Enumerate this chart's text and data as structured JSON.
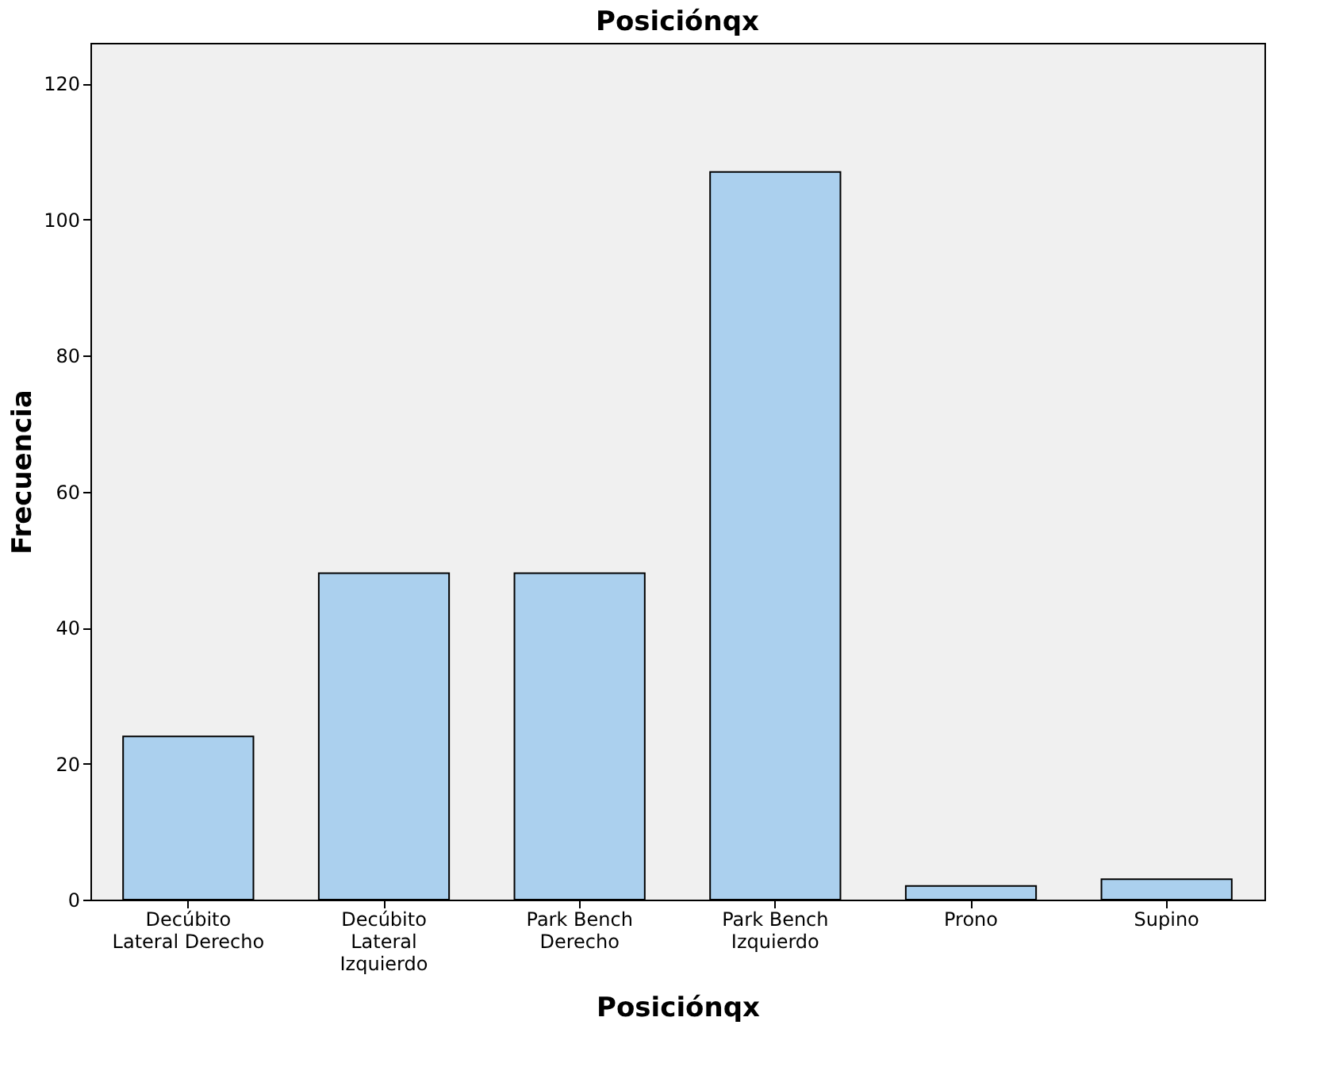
{
  "chart_data": {
    "type": "bar",
    "title": "Posiciónqx",
    "xlabel": "Posiciónqx",
    "ylabel": "Frecuencia",
    "categories": [
      "Decúbito Lateral Derecho",
      "Decúbito Lateral Izquierdo",
      "Park Bench Derecho",
      "Park Bench Izquierdo",
      "Prono",
      "Supino"
    ],
    "values": [
      24,
      48,
      48,
      107,
      2,
      3
    ],
    "color": "#abd0ee",
    "ylim": [
      0,
      126
    ],
    "yticks": [
      0,
      20,
      40,
      60,
      80,
      100,
      120
    ],
    "grid": false
  }
}
